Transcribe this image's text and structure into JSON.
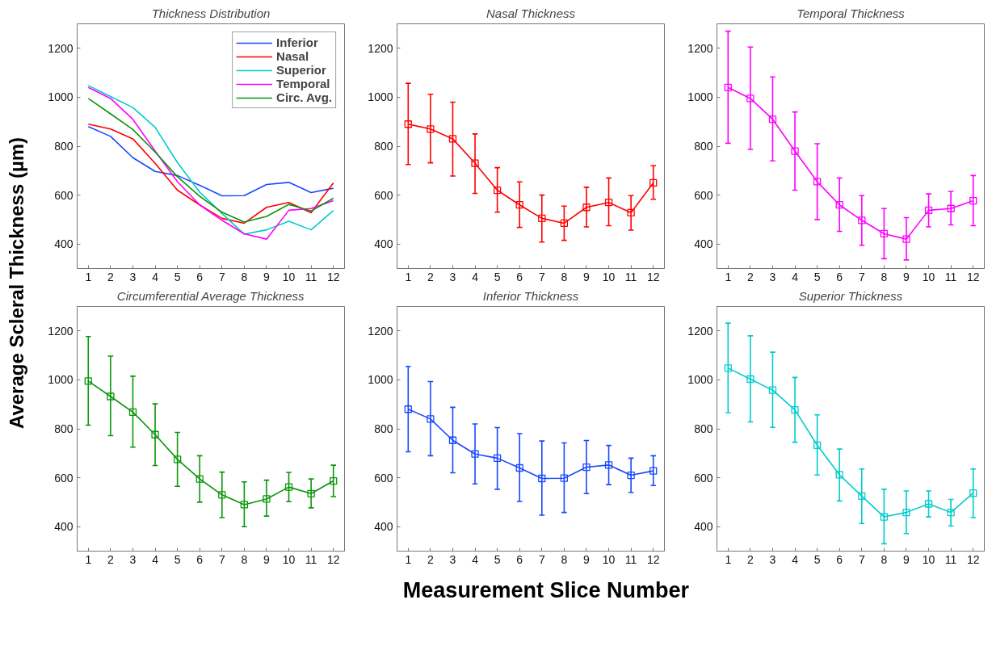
{
  "chart_data": [
    {
      "type": "line",
      "title": "Thickness Distribution",
      "ylabel": "Average Scleral Thickness (µm)",
      "x": [
        1,
        2,
        3,
        4,
        5,
        6,
        7,
        8,
        9,
        10,
        11,
        12
      ],
      "xlim": [
        0.5,
        12.5
      ],
      "xticks": [
        1,
        2,
        3,
        4,
        5,
        6,
        7,
        8,
        9,
        10,
        11,
        12
      ],
      "ylim": [
        300,
        1300
      ],
      "yticks": [
        400,
        600,
        800,
        1000,
        1200
      ],
      "grid": false,
      "legend": "top right",
      "marker": "none",
      "line_style": "solid",
      "series": [
        {
          "name": "Inferior",
          "color": "#1a47ff",
          "values": [
            880,
            840,
            753,
            697,
            680,
            640,
            597,
            598,
            643,
            652,
            610,
            628
          ]
        },
        {
          "name": "Nasal",
          "color": "#ff0000",
          "values": [
            890,
            870,
            830,
            730,
            620,
            560,
            505,
            485,
            550,
            570,
            528,
            650
          ]
        },
        {
          "name": "Superior",
          "color": "#00cccc",
          "values": [
            1048,
            1003,
            958,
            877,
            733,
            612,
            525,
            440,
            458,
            493,
            458,
            537
          ]
        },
        {
          "name": "Temporal",
          "color": "#ff00ff",
          "values": [
            1040,
            995,
            910,
            780,
            655,
            560,
            497,
            442,
            420,
            538,
            545,
            577
          ]
        },
        {
          "name": "Circ. Avg.",
          "color": "#0a960a",
          "values": [
            995,
            932,
            868,
            776,
            675,
            595,
            530,
            490,
            513,
            562,
            535,
            587
          ]
        }
      ]
    },
    {
      "type": "line",
      "title": "Nasal Thickness",
      "x": [
        1,
        2,
        3,
        4,
        5,
        6,
        7,
        8,
        9,
        10,
        11,
        12
      ],
      "xlim": [
        0.5,
        12.5
      ],
      "xticks": [
        1,
        2,
        3,
        4,
        5,
        6,
        7,
        8,
        9,
        10,
        11,
        12
      ],
      "ylim": [
        300,
        1300
      ],
      "yticks": [
        400,
        600,
        800,
        1000,
        1200
      ],
      "grid": false,
      "legend": false,
      "marker": "square",
      "line_style": "solid",
      "series": [
        {
          "color": "#ff0000",
          "values": [
            890,
            870,
            830,
            730,
            620,
            560,
            505,
            485,
            550,
            570,
            528,
            650
          ],
          "errors": [
            [
              725,
              1057
            ],
            [
              732,
              1012
            ],
            [
              678,
              980
            ],
            [
              607,
              850
            ],
            [
              530,
              712
            ],
            [
              468,
              654
            ],
            [
              408,
              600
            ],
            [
              415,
              555
            ],
            [
              470,
              632
            ],
            [
              475,
              670
            ],
            [
              457,
              598
            ],
            [
              583,
              720
            ]
          ]
        }
      ]
    },
    {
      "type": "line",
      "title": "Temporal Thickness",
      "x": [
        1,
        2,
        3,
        4,
        5,
        6,
        7,
        8,
        9,
        10,
        11,
        12
      ],
      "xlim": [
        0.5,
        12.5
      ],
      "xticks": [
        1,
        2,
        3,
        4,
        5,
        6,
        7,
        8,
        9,
        10,
        11,
        12
      ],
      "ylim": [
        300,
        1300
      ],
      "yticks": [
        400,
        600,
        800,
        1000,
        1200
      ],
      "grid": false,
      "legend": false,
      "marker": "square",
      "line_style": "solid",
      "series": [
        {
          "color": "#ff00ff",
          "values": [
            1040,
            995,
            910,
            780,
            655,
            560,
            497,
            442,
            420,
            538,
            545,
            577
          ],
          "errors": [
            [
              812,
              1270
            ],
            [
              787,
              1205
            ],
            [
              740,
              1083
            ],
            [
              620,
              940
            ],
            [
              500,
              810
            ],
            [
              452,
              670
            ],
            [
              395,
              598
            ],
            [
              340,
              545
            ],
            [
              335,
              508
            ],
            [
              470,
              605
            ],
            [
              478,
              615
            ],
            [
              475,
              680
            ]
          ]
        }
      ]
    },
    {
      "type": "line",
      "title": "Circumferential Average Thickness",
      "x": [
        1,
        2,
        3,
        4,
        5,
        6,
        7,
        8,
        9,
        10,
        11,
        12
      ],
      "xlim": [
        0.5,
        12.5
      ],
      "xticks": [
        1,
        2,
        3,
        4,
        5,
        6,
        7,
        8,
        9,
        10,
        11,
        12
      ],
      "ylim": [
        300,
        1300
      ],
      "yticks": [
        400,
        600,
        800,
        1000,
        1200
      ],
      "grid": false,
      "legend": false,
      "marker": "square",
      "line_style": "solid",
      "series": [
        {
          "color": "#0a960a",
          "values": [
            995,
            932,
            868,
            776,
            675,
            595,
            530,
            490,
            513,
            562,
            535,
            587
          ],
          "errors": [
            [
              815,
              1177
            ],
            [
              772,
              1097
            ],
            [
              725,
              1015
            ],
            [
              650,
              902
            ],
            [
              565,
              785
            ],
            [
              500,
              690
            ],
            [
              437,
              623
            ],
            [
              400,
              583
            ],
            [
              443,
              590
            ],
            [
              502,
              622
            ],
            [
              477,
              595
            ],
            [
              523,
              651
            ]
          ]
        }
      ]
    },
    {
      "type": "line",
      "title": "Inferior Thickness",
      "xlabel": "Measurement Slice Number",
      "x": [
        1,
        2,
        3,
        4,
        5,
        6,
        7,
        8,
        9,
        10,
        11,
        12
      ],
      "xlim": [
        0.5,
        12.5
      ],
      "xticks": [
        1,
        2,
        3,
        4,
        5,
        6,
        7,
        8,
        9,
        10,
        11,
        12
      ],
      "ylim": [
        300,
        1300
      ],
      "yticks": [
        400,
        600,
        800,
        1000,
        1200
      ],
      "grid": false,
      "legend": false,
      "marker": "square",
      "line_style": "solid",
      "series": [
        {
          "color": "#1a47ff",
          "values": [
            880,
            840,
            753,
            697,
            680,
            640,
            597,
            598,
            643,
            652,
            610,
            628
          ],
          "errors": [
            [
              706,
              1055
            ],
            [
              690,
              993
            ],
            [
              620,
              888
            ],
            [
              575,
              820
            ],
            [
              553,
              805
            ],
            [
              503,
              780
            ],
            [
              447,
              750
            ],
            [
              458,
              742
            ],
            [
              535,
              752
            ],
            [
              572,
              732
            ],
            [
              540,
              680
            ],
            [
              568,
              690
            ]
          ]
        }
      ]
    },
    {
      "type": "line",
      "title": "Superior Thickness",
      "x": [
        1,
        2,
        3,
        4,
        5,
        6,
        7,
        8,
        9,
        10,
        11,
        12
      ],
      "xlim": [
        0.5,
        12.5
      ],
      "xticks": [
        1,
        2,
        3,
        4,
        5,
        6,
        7,
        8,
        9,
        10,
        11,
        12
      ],
      "ylim": [
        300,
        1300
      ],
      "yticks": [
        400,
        600,
        800,
        1000,
        1200
      ],
      "grid": false,
      "legend": false,
      "marker": "square",
      "line_style": "solid",
      "series": [
        {
          "color": "#00cccc",
          "values": [
            1048,
            1003,
            958,
            877,
            733,
            612,
            525,
            440,
            458,
            493,
            458,
            537
          ],
          "errors": [
            [
              866,
              1232
            ],
            [
              828,
              1180
            ],
            [
              806,
              1113
            ],
            [
              745,
              1010
            ],
            [
              611,
              857
            ],
            [
              505,
              717
            ],
            [
              413,
              636
            ],
            [
              330,
              553
            ],
            [
              372,
              546
            ],
            [
              440,
              546
            ],
            [
              403,
              511
            ],
            [
              437,
              636
            ]
          ]
        }
      ]
    }
  ]
}
